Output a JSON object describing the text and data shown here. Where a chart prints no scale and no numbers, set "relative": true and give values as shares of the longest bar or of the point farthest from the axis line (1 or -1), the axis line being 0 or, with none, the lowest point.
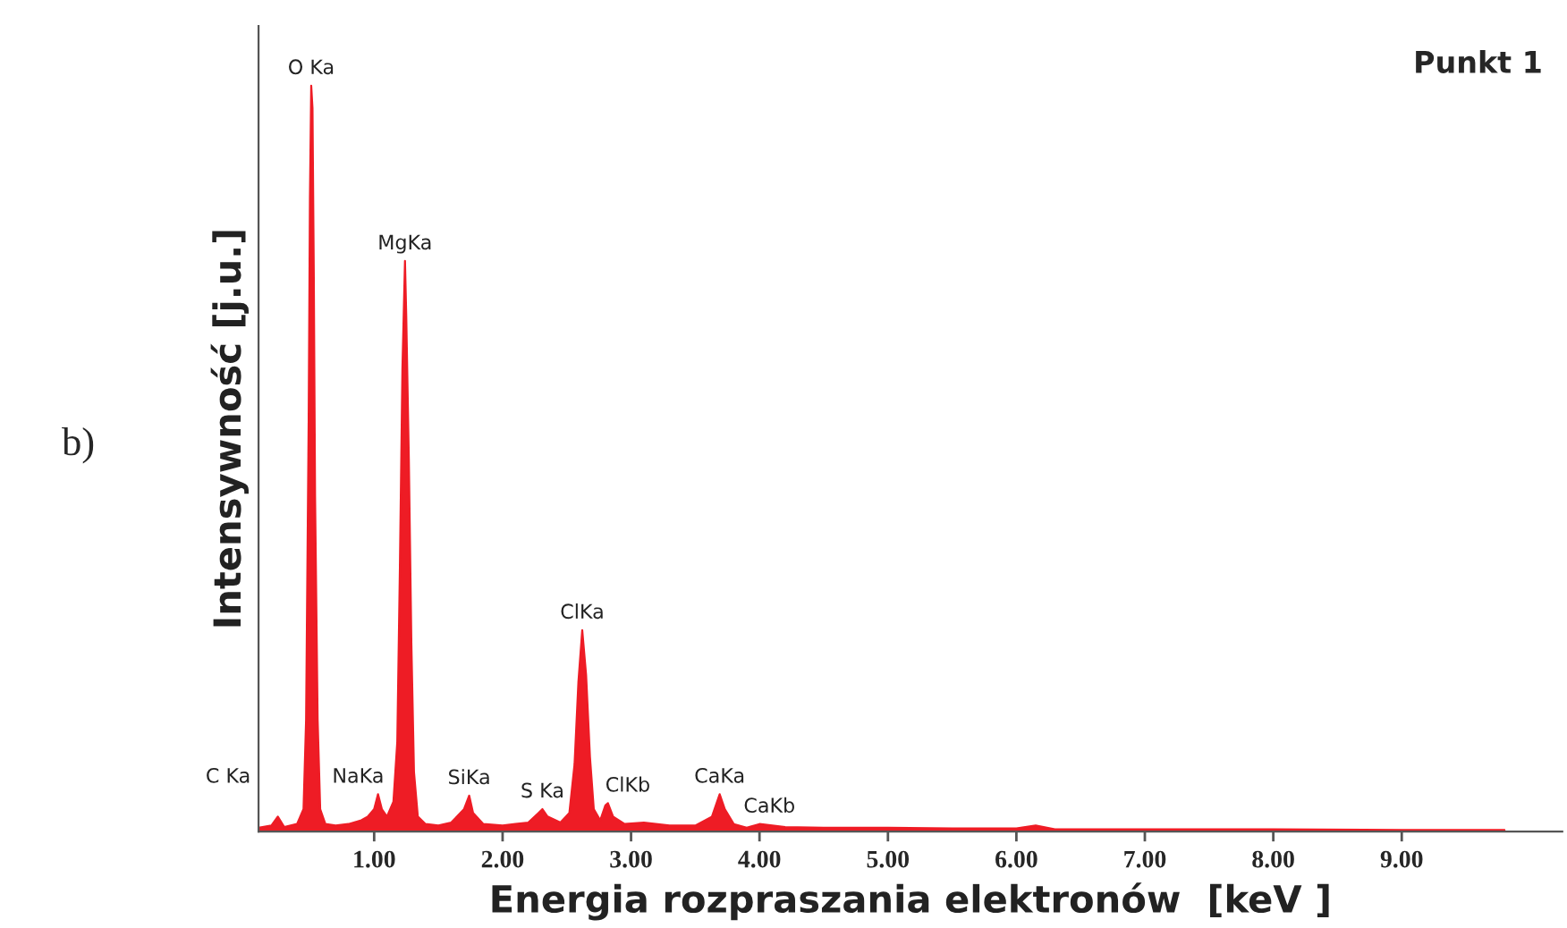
{
  "chart_data": {
    "type": "area",
    "title": "Punkt 1",
    "xlabel": "Energia rozpraszania elektronów  [keV ]",
    "ylabel": "Intensywność [j.u.]",
    "relative": true,
    "x": [
      0.1,
      0.2,
      0.25,
      0.3,
      0.4,
      0.45,
      0.47,
      0.49,
      0.5,
      0.51,
      0.52,
      0.53,
      0.54,
      0.56,
      0.58,
      0.62,
      0.7,
      0.8,
      0.9,
      0.95,
      1.0,
      1.03,
      1.06,
      1.1,
      1.15,
      1.18,
      1.2,
      1.22,
      1.24,
      1.25,
      1.27,
      1.29,
      1.31,
      1.34,
      1.4,
      1.5,
      1.6,
      1.7,
      1.74,
      1.77,
      1.85,
      2.0,
      2.1,
      2.2,
      2.28,
      2.31,
      2.35,
      2.45,
      2.52,
      2.56,
      2.59,
      2.62,
      2.65,
      2.68,
      2.71,
      2.76,
      2.8,
      2.82,
      2.86,
      2.95,
      3.1,
      3.3,
      3.5,
      3.63,
      3.69,
      3.73,
      3.8,
      3.9,
      4.0,
      4.2,
      4.5,
      5.0,
      5.5,
      6.0,
      6.15,
      6.3,
      7.0,
      8.0,
      9.0,
      9.8
    ],
    "series": [
      {
        "color": "#ee1c25",
        "values": [
          0.005,
          0.008,
          0.02,
          0.006,
          0.01,
          0.03,
          0.15,
          0.55,
          0.85,
          1.0,
          0.97,
          0.75,
          0.45,
          0.15,
          0.03,
          0.01,
          0.008,
          0.01,
          0.015,
          0.02,
          0.03,
          0.05,
          0.03,
          0.02,
          0.04,
          0.12,
          0.35,
          0.62,
          0.765,
          0.69,
          0.5,
          0.25,
          0.08,
          0.02,
          0.01,
          0.008,
          0.012,
          0.03,
          0.048,
          0.025,
          0.01,
          0.008,
          0.01,
          0.012,
          0.025,
          0.03,
          0.02,
          0.012,
          0.025,
          0.09,
          0.2,
          0.27,
          0.21,
          0.1,
          0.03,
          0.015,
          0.035,
          0.038,
          0.02,
          0.01,
          0.012,
          0.008,
          0.008,
          0.02,
          0.05,
          0.03,
          0.01,
          0.005,
          0.01,
          0.006,
          0.005,
          0.005,
          0.004,
          0.004,
          0.008,
          0.003,
          0.003,
          0.003,
          0.002,
          0.002
        ]
      }
    ],
    "xlim": [
      0.1,
      10.25
    ],
    "xticks": [
      {
        "value": 1,
        "label": "1.00"
      },
      {
        "value": 2,
        "label": "2.00"
      },
      {
        "value": 3,
        "label": "3.00"
      },
      {
        "value": 4,
        "label": "4.00"
      },
      {
        "value": 5,
        "label": "5.00"
      },
      {
        "value": 6,
        "label": "6.00"
      },
      {
        "value": 7,
        "label": "7.00"
      },
      {
        "value": 8,
        "label": "8.00"
      },
      {
        "value": 9,
        "label": "9.00"
      }
    ],
    "grid": false,
    "legend": false,
    "annotations": [
      {
        "text": "C Ka",
        "x": 0.25,
        "y": 0.02
      },
      {
        "text": "O Ka",
        "x": 0.51,
        "y": 1.0
      },
      {
        "text": "NaKa",
        "x": 1.03,
        "y": 0.05
      },
      {
        "text": "MgKa",
        "x": 1.24,
        "y": 0.765
      },
      {
        "text": "SiKa",
        "x": 1.74,
        "y": 0.048
      },
      {
        "text": "S Ka",
        "x": 2.31,
        "y": 0.03
      },
      {
        "text": "ClKa",
        "x": 2.62,
        "y": 0.27
      },
      {
        "text": "ClKb",
        "x": 2.82,
        "y": 0.038
      },
      {
        "text": "CaKa",
        "x": 3.69,
        "y": 0.05
      },
      {
        "text": "CaKb",
        "x": 4.0,
        "y": 0.01
      },
      "b)"
    ]
  }
}
